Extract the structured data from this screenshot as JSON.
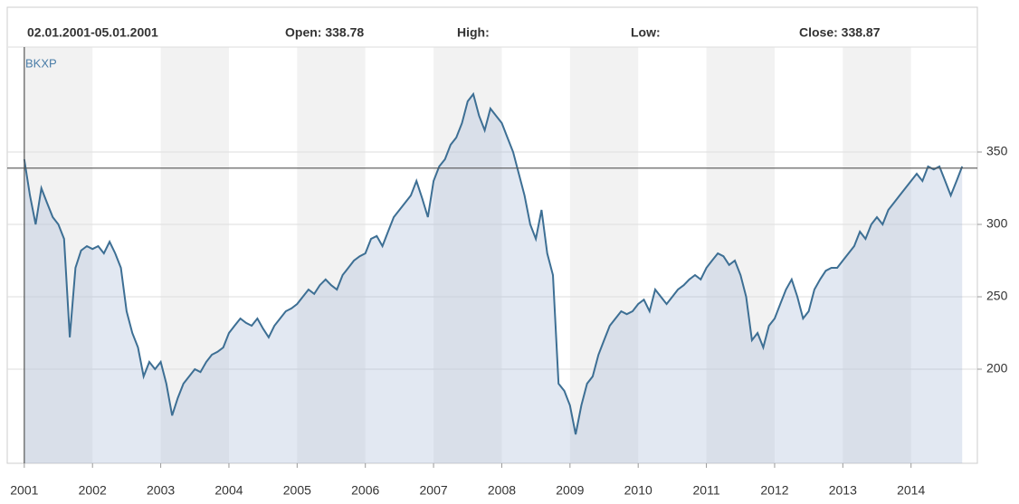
{
  "chart_data": {
    "type": "line",
    "header": {
      "date_range": "02.01.2001-05.01.2001",
      "open": "Open: 338.78",
      "high": "High:",
      "low": "Low:",
      "close": "Close: 338.87"
    },
    "x": [
      2001.0,
      2001.083,
      2001.167,
      2001.25,
      2001.333,
      2001.417,
      2001.5,
      2001.583,
      2001.667,
      2001.75,
      2001.833,
      2001.917,
      2002.0,
      2002.083,
      2002.167,
      2002.25,
      2002.333,
      2002.417,
      2002.5,
      2002.583,
      2002.667,
      2002.75,
      2002.833,
      2002.917,
      2003.0,
      2003.083,
      2003.167,
      2003.25,
      2003.333,
      2003.417,
      2003.5,
      2003.583,
      2003.667,
      2003.75,
      2003.833,
      2003.917,
      2004.0,
      2004.083,
      2004.167,
      2004.25,
      2004.333,
      2004.417,
      2004.5,
      2004.583,
      2004.667,
      2004.75,
      2004.833,
      2004.917,
      2005.0,
      2005.083,
      2005.167,
      2005.25,
      2005.333,
      2005.417,
      2005.5,
      2005.583,
      2005.667,
      2005.75,
      2005.833,
      2005.917,
      2006.0,
      2006.083,
      2006.167,
      2006.25,
      2006.333,
      2006.417,
      2006.5,
      2006.583,
      2006.667,
      2006.75,
      2006.833,
      2006.917,
      2007.0,
      2007.083,
      2007.167,
      2007.25,
      2007.333,
      2007.417,
      2007.5,
      2007.583,
      2007.667,
      2007.75,
      2007.833,
      2007.917,
      2008.0,
      2008.083,
      2008.167,
      2008.25,
      2008.333,
      2008.417,
      2008.5,
      2008.583,
      2008.667,
      2008.75,
      2008.833,
      2008.917,
      2009.0,
      2009.083,
      2009.167,
      2009.25,
      2009.333,
      2009.417,
      2009.5,
      2009.583,
      2009.667,
      2009.75,
      2009.833,
      2009.917,
      2010.0,
      2010.083,
      2010.167,
      2010.25,
      2010.333,
      2010.417,
      2010.5,
      2010.583,
      2010.667,
      2010.75,
      2010.833,
      2010.917,
      2011.0,
      2011.083,
      2011.167,
      2011.25,
      2011.333,
      2011.417,
      2011.5,
      2011.583,
      2011.667,
      2011.75,
      2011.833,
      2011.917,
      2012.0,
      2012.083,
      2012.167,
      2012.25,
      2012.333,
      2012.417,
      2012.5,
      2012.583,
      2012.667,
      2012.75,
      2012.833,
      2012.917,
      2013.0,
      2013.083,
      2013.167,
      2013.25,
      2013.333,
      2013.417,
      2013.5,
      2013.583,
      2013.667,
      2013.75,
      2013.833,
      2013.917,
      2014.0,
      2014.083,
      2014.167,
      2014.25,
      2014.333,
      2014.417,
      2014.5,
      2014.583,
      2014.667,
      2014.75
    ],
    "series": [
      {
        "name": "BKXP",
        "color": "#3d6f94",
        "values": [
          345,
          320,
          300,
          325,
          315,
          305,
          300,
          290,
          222,
          270,
          282,
          285,
          283,
          285,
          280,
          288,
          280,
          270,
          240,
          225,
          215,
          195,
          205,
          200,
          205,
          190,
          168,
          180,
          190,
          195,
          200,
          198,
          205,
          210,
          212,
          215,
          225,
          230,
          235,
          232,
          230,
          235,
          228,
          222,
          230,
          235,
          240,
          242,
          245,
          250,
          255,
          252,
          258,
          262,
          258,
          255,
          265,
          270,
          275,
          278,
          280,
          290,
          292,
          285,
          295,
          305,
          310,
          315,
          320,
          330,
          318,
          305,
          330,
          340,
          345,
          355,
          360,
          370,
          385,
          390,
          375,
          365,
          380,
          375,
          370,
          360,
          350,
          335,
          320,
          300,
          290,
          310,
          280,
          265,
          190,
          185,
          175,
          155,
          175,
          190,
          195,
          210,
          220,
          230,
          235,
          240,
          238,
          240,
          245,
          248,
          240,
          255,
          250,
          245,
          250,
          255,
          258,
          262,
          265,
          262,
          270,
          275,
          280,
          278,
          272,
          275,
          265,
          250,
          220,
          225,
          215,
          230,
          235,
          245,
          255,
          262,
          250,
          235,
          240,
          255,
          262,
          268,
          270,
          270,
          275,
          280,
          285,
          295,
          290,
          300,
          305,
          300,
          310,
          315,
          320,
          325,
          330,
          335,
          330,
          340,
          338,
          340,
          330,
          320,
          330,
          340
        ]
      }
    ],
    "crosshair": {
      "x": 2001,
      "y": 338.87
    },
    "xlim": [
      2000.75,
      2014.8
    ],
    "xticks": [
      2001,
      2002,
      2003,
      2004,
      2005,
      2006,
      2007,
      2008,
      2009,
      2010,
      2011,
      2012,
      2013,
      2014
    ],
    "ylim": [
      135,
      422.5
    ],
    "yticks": [
      200,
      250,
      300,
      350
    ],
    "grid": true,
    "year_bands": true
  }
}
